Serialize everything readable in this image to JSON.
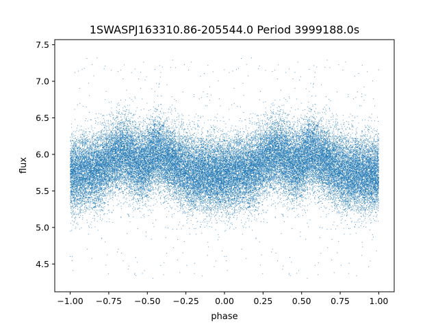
{
  "chart_data": {
    "type": "scatter",
    "title": "1SWASPJ163310.86-205544.0 Period 3999188.0s",
    "xlabel": "phase",
    "ylabel": "flux",
    "xlim": [
      -1.1,
      1.1
    ],
    "ylim": [
      4.12,
      7.57
    ],
    "xticks": [
      -1.0,
      -0.75,
      -0.5,
      -0.25,
      0.0,
      0.25,
      0.5,
      0.75,
      1.0
    ],
    "xtick_labels": [
      "−1.00",
      "−0.75",
      "−0.50",
      "−0.25",
      "0.00",
      "0.25",
      "0.50",
      "0.75",
      "1.00"
    ],
    "yticks": [
      4.5,
      5.0,
      5.5,
      6.0,
      6.5,
      7.0,
      7.5
    ],
    "ytick_labels": [
      "4.5",
      "5.0",
      "5.5",
      "6.0",
      "6.5",
      "7.0",
      "7.5"
    ],
    "grid": false,
    "point_color": "#1f77b4",
    "marker_size": 1,
    "point_count_approx": 40000,
    "phase_range": [
      -1.0,
      1.0
    ],
    "folding": "light curve repeated twice over phase -1 to 1 (period 1.0)",
    "mean_flux_profile": {
      "phase": [
        0.0,
        0.05,
        0.1,
        0.15,
        0.2,
        0.25,
        0.3,
        0.35,
        0.4,
        0.45,
        0.5,
        0.55,
        0.6,
        0.65,
        0.7,
        0.75,
        0.8,
        0.85,
        0.9,
        0.95,
        1.0
      ],
      "flux": [
        5.72,
        5.72,
        5.78,
        5.76,
        5.8,
        5.9,
        5.98,
        6.0,
        5.96,
        5.85,
        5.9,
        6.05,
        5.98,
        5.92,
        5.85,
        5.78,
        5.72,
        5.75,
        5.74,
        5.72,
        5.72
      ]
    },
    "scatter_sigma": 0.25,
    "outlier_range": [
      4.3,
      7.35
    ]
  }
}
